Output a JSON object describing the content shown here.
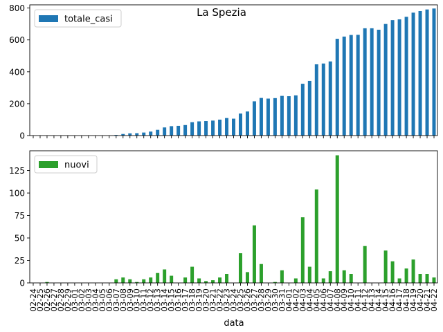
{
  "chart_data": [
    {
      "type": "bar",
      "title": "La Spezia",
      "xlabel": "",
      "ylabel": "",
      "ylim": [
        0,
        820
      ],
      "yticks": [
        0,
        200,
        400,
        600,
        800
      ],
      "grid": false,
      "legend_position": "top-left",
      "categories": [
        "02-24",
        "02-25",
        "02-26",
        "02-27",
        "02-28",
        "02-29",
        "03-01",
        "03-02",
        "03-03",
        "03-04",
        "03-05",
        "03-06",
        "03-07",
        "03-08",
        "03-09",
        "03-10",
        "03-11",
        "03-12",
        "03-13",
        "03-14",
        "03-15",
        "03-16",
        "03-17",
        "03-18",
        "03-19",
        "03-20",
        "03-21",
        "03-22",
        "03-23",
        "03-24",
        "03-25",
        "03-26",
        "03-27",
        "03-28",
        "03-29",
        "03-30",
        "03-31",
        "04-01",
        "04-02",
        "04-03",
        "04-04",
        "04-05",
        "04-06",
        "04-07",
        "04-08",
        "04-09",
        "04-10",
        "04-11",
        "04-12",
        "04-13",
        "04-14",
        "04-15",
        "04-16",
        "04-17",
        "04-18",
        "04-19",
        "04-20",
        "04-21",
        "04-22"
      ],
      "series": [
        {
          "name": "totale_casi",
          "color": "#1f77b4",
          "values": [
            0,
            0,
            0,
            0,
            0,
            0,
            0,
            0,
            0,
            0,
            0,
            0,
            4,
            10,
            14,
            15,
            19,
            25,
            36,
            51,
            59,
            61,
            66,
            84,
            89,
            91,
            94,
            100,
            110,
            106,
            138,
            151,
            215,
            236,
            232,
            235,
            249,
            247,
            252,
            325,
            343,
            447,
            452,
            465,
            607,
            621,
            631,
            632,
            673,
            673,
            664,
            700,
            724,
            729,
            745,
            771,
            781,
            791,
            797
          ]
        }
      ]
    },
    {
      "type": "bar",
      "xlabel": "data",
      "ylabel": "",
      "ylim": [
        0,
        147
      ],
      "yticks": [
        0,
        25,
        50,
        75,
        100,
        125
      ],
      "grid": false,
      "legend_position": "top-left",
      "categories": [
        "02-24",
        "02-25",
        "02-26",
        "02-27",
        "02-28",
        "02-29",
        "03-01",
        "03-02",
        "03-03",
        "03-04",
        "03-05",
        "03-06",
        "03-07",
        "03-08",
        "03-09",
        "03-10",
        "03-11",
        "03-12",
        "03-13",
        "03-14",
        "03-15",
        "03-16",
        "03-17",
        "03-18",
        "03-19",
        "03-20",
        "03-21",
        "03-22",
        "03-23",
        "03-24",
        "03-25",
        "03-26",
        "03-27",
        "03-28",
        "03-29",
        "03-30",
        "03-31",
        "04-01",
        "04-02",
        "04-03",
        "04-04",
        "04-05",
        "04-06",
        "04-07",
        "04-08",
        "04-09",
        "04-10",
        "04-11",
        "04-12",
        "04-13",
        "04-14",
        "04-15",
        "04-16",
        "04-17",
        "04-18",
        "04-19",
        "04-20",
        "04-21",
        "04-22"
      ],
      "series": [
        {
          "name": "nuovi",
          "color": "#2ca02c",
          "values": [
            0,
            0,
            1,
            0,
            0,
            0,
            0,
            0,
            0,
            0,
            0,
            0,
            4,
            6,
            4,
            1,
            4,
            6,
            11,
            15,
            8,
            0,
            6,
            18,
            5,
            2,
            3,
            6,
            10,
            0,
            33,
            12,
            64,
            21,
            0,
            1,
            14,
            0,
            5,
            73,
            18,
            104,
            5,
            13,
            142,
            14,
            10,
            0,
            41,
            0,
            0,
            36,
            24,
            5,
            16,
            26,
            10,
            10,
            6
          ]
        }
      ]
    }
  ]
}
